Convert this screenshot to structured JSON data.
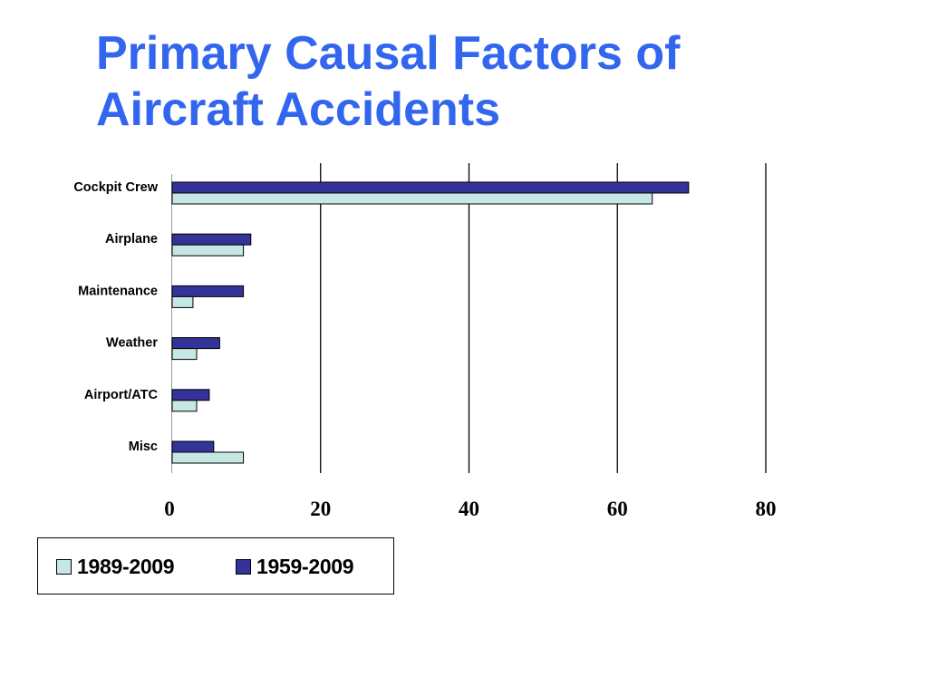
{
  "title_lines": [
    "Primary Causal Factors of",
    "Aircraft Accidents"
  ],
  "colors": {
    "title": "#3366ee",
    "series_1989_2009": "#c6e8e4",
    "series_1959_2009": "#333399",
    "grid": "#000000"
  },
  "chart_data": {
    "type": "bar",
    "orientation": "horizontal",
    "title": "Primary Causal Factors of Aircraft Accidents",
    "categories": [
      "Cockpit Crew",
      "Airplane",
      "Maintenance",
      "Weather",
      "Airport/ATC",
      "Misc"
    ],
    "series": [
      {
        "name": "1989-2009",
        "values": [
          64.7,
          9.6,
          2.8,
          3.3,
          3.3,
          9.6
        ]
      },
      {
        "name": "1959-2009",
        "values": [
          69.6,
          10.6,
          9.6,
          6.4,
          5.0,
          5.6
        ]
      }
    ],
    "xlim": [
      0,
      80
    ],
    "xticks": [
      "0",
      "20",
      "40",
      "60",
      "80"
    ],
    "grid": "vertical lines at major ticks",
    "legend": "bottom-left"
  }
}
